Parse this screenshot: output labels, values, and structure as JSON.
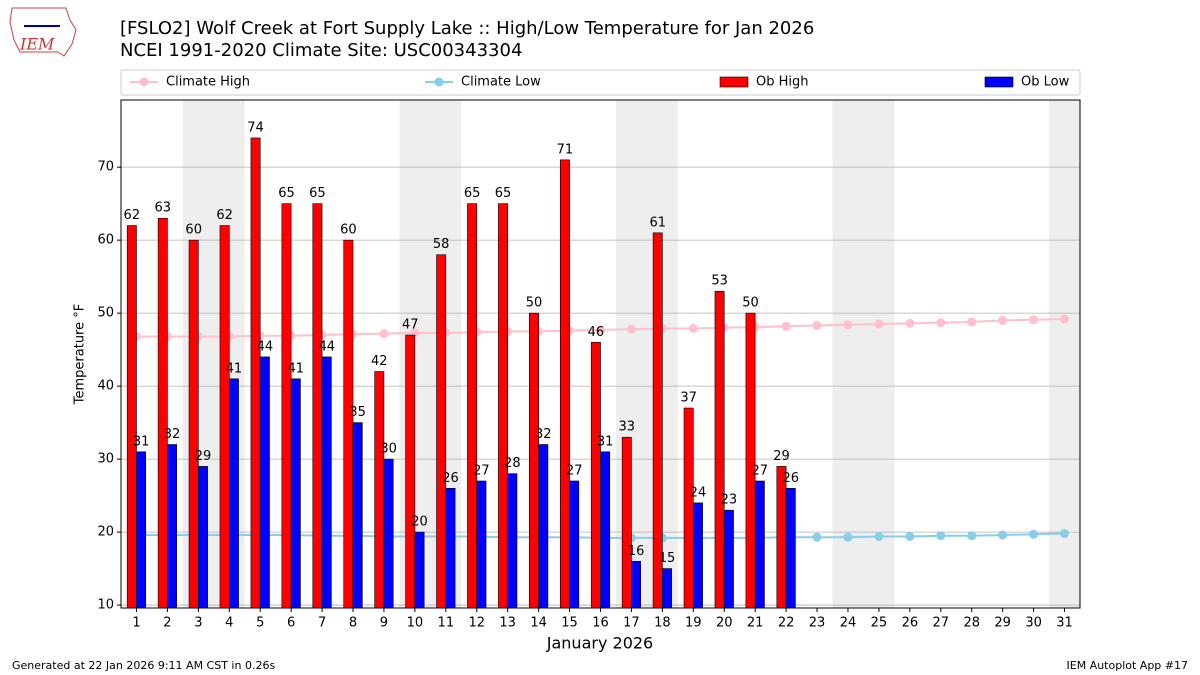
{
  "chart_data": {
    "type": "bar",
    "title": "[FSLO2] Wolf Creek at Fort Supply Lake :: High/Low Temperature for Jan 2026",
    "subtitle": "NCEI 1991-2020 Climate Site: USC00343304",
    "xlabel": "January 2026",
    "ylabel": "Temperature °F",
    "logo": "IEM",
    "footer_left": "Generated at 22 Jan 2026 9:11 AM CST in 0.26s",
    "footer_right": "IEM Autoplot App #17",
    "x": [
      1,
      2,
      3,
      4,
      5,
      6,
      7,
      8,
      9,
      10,
      11,
      12,
      13,
      14,
      15,
      16,
      17,
      18,
      19,
      20,
      21,
      22,
      23,
      24,
      25,
      26,
      27,
      28,
      29,
      30,
      31
    ],
    "xlim": [
      0.5,
      31.5
    ],
    "xticks": [
      1,
      2,
      3,
      4,
      5,
      6,
      7,
      8,
      9,
      10,
      11,
      12,
      13,
      14,
      15,
      16,
      17,
      18,
      19,
      20,
      21,
      22,
      23,
      24,
      25,
      26,
      27,
      28,
      29,
      30,
      31
    ],
    "ylim": [
      9.6,
      79.2
    ],
    "yticks": [
      10,
      20,
      30,
      40,
      50,
      60,
      70
    ],
    "grid": true,
    "weekend_shading": [
      3,
      4,
      10,
      11,
      17,
      18,
      24,
      25,
      31
    ],
    "series": [
      {
        "name": "Climate High",
        "type": "line",
        "color": "#ffc0cb",
        "values": [
          46.8,
          46.8,
          46.8,
          46.8,
          46.9,
          46.9,
          47.0,
          47.1,
          47.2,
          47.3,
          47.3,
          47.4,
          47.5,
          47.5,
          47.6,
          47.7,
          47.8,
          47.9,
          47.9,
          48.0,
          48.1,
          48.2,
          48.3,
          48.4,
          48.5,
          48.6,
          48.7,
          48.8,
          49.0,
          49.1,
          49.2
        ]
      },
      {
        "name": "Climate Low",
        "type": "line",
        "color": "#87ceeb",
        "values": [
          19.6,
          19.6,
          19.6,
          19.6,
          19.6,
          19.6,
          19.5,
          19.5,
          19.4,
          19.4,
          19.4,
          19.4,
          19.3,
          19.3,
          19.3,
          19.2,
          19.2,
          19.2,
          19.2,
          19.2,
          19.2,
          19.3,
          19.3,
          19.3,
          19.4,
          19.4,
          19.5,
          19.5,
          19.6,
          19.7,
          19.8
        ]
      },
      {
        "name": "Ob High",
        "type": "bar",
        "color": "#ff0000",
        "values": [
          62,
          63,
          60,
          62,
          74,
          65,
          65,
          60,
          42,
          47,
          58,
          65,
          65,
          50,
          71,
          46,
          33,
          61,
          37,
          53,
          50,
          29,
          null,
          null,
          null,
          null,
          null,
          null,
          null,
          null,
          null
        ]
      },
      {
        "name": "Ob Low",
        "type": "bar",
        "color": "#0000ff",
        "values": [
          31,
          32,
          29,
          41,
          44,
          41,
          44,
          35,
          30,
          20,
          26,
          27,
          28,
          32,
          27,
          31,
          16,
          15,
          24,
          23,
          27,
          26,
          null,
          null,
          null,
          null,
          null,
          null,
          null,
          null,
          null
        ]
      }
    ]
  }
}
